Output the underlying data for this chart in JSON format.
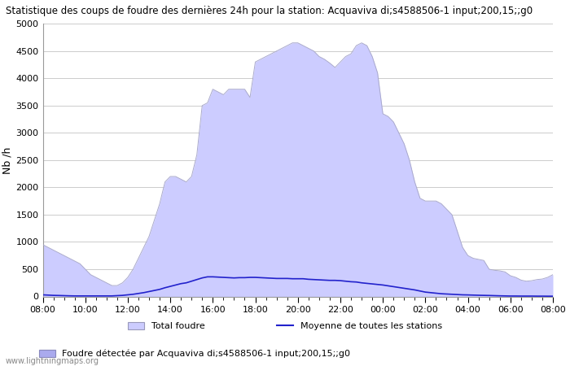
{
  "title": "Statistique des coups de foudre des dernières 24h pour la station: Acquaviva di;s4588506-1 input;200,15;;g0",
  "ylabel": "Nb /h",
  "watermark": "www.lightningmaps.org",
  "ylim": [
    0,
    5000
  ],
  "yticks": [
    0,
    500,
    1000,
    1500,
    2000,
    2500,
    3000,
    3500,
    4000,
    4500,
    5000
  ],
  "xtick_labels": [
    "08:00",
    "10:00",
    "12:00",
    "14:00",
    "16:00",
    "18:00",
    "20:00",
    "22:00",
    "00:00",
    "02:00",
    "04:00",
    "06:00",
    "08:00"
  ],
  "fill_color": "#ccccff",
  "fill_edge_color": "#aaaacc",
  "line_color": "#2222cc",
  "bg_color": "#ffffff",
  "grid_color": "#cccccc",
  "legend_total": "Total foudre",
  "legend_moyenne": "Moyenne de toutes les stations",
  "legend_station": "Foudre détectée par Acquaviva di;s4588506-1 input;200,15;;g0",
  "total_x": [
    0,
    0.25,
    0.5,
    0.75,
    1.0,
    1.25,
    1.5,
    1.75,
    2.0,
    2.25,
    2.5,
    2.75,
    3.0,
    3.25,
    3.5,
    3.75,
    4.0,
    4.25,
    4.5,
    4.75,
    5.0,
    5.25,
    5.5,
    5.75,
    6.0,
    6.25,
    6.5,
    6.75,
    7.0,
    7.25,
    7.5,
    7.75,
    8.0,
    8.25,
    8.5,
    8.75,
    9.0,
    9.25,
    9.5,
    9.75,
    10.0,
    10.25,
    10.5,
    10.75,
    11.0,
    11.25,
    11.5,
    11.75,
    12.0,
    12.25,
    12.5,
    12.75,
    13.0,
    13.25,
    13.5,
    13.75,
    14.0,
    14.25,
    14.5,
    14.75,
    15.0,
    15.25,
    15.5,
    15.75,
    16.0,
    16.25,
    16.5,
    16.75,
    17.0,
    17.25,
    17.5,
    17.75,
    18.0,
    18.25,
    18.5,
    18.75,
    19.0,
    19.25,
    19.5,
    19.75,
    20.0,
    20.25,
    20.5,
    20.75,
    21.0,
    21.25,
    21.5,
    21.75,
    22.0,
    22.25,
    22.5,
    22.75,
    23.0,
    23.25,
    23.5,
    23.75,
    24.0
  ],
  "total_y": [
    950,
    900,
    850,
    800,
    750,
    700,
    650,
    600,
    500,
    400,
    350,
    300,
    250,
    200,
    200,
    250,
    350,
    500,
    700,
    900,
    1100,
    1400,
    1700,
    2100,
    2200,
    2200,
    2150,
    2100,
    2200,
    2600,
    3500,
    3550,
    3800,
    3750,
    3700,
    3800,
    3800,
    3800,
    3800,
    3650,
    4300,
    4350,
    4400,
    4450,
    4500,
    4550,
    4600,
    4650,
    4650,
    4600,
    4550,
    4500,
    4400,
    4350,
    4280,
    4200,
    4300,
    4400,
    4450,
    4600,
    4650,
    4600,
    4400,
    4100,
    3350,
    3300,
    3200,
    3000,
    2800,
    2500,
    2100,
    1800,
    1750,
    1750,
    1750,
    1700,
    1600,
    1500,
    1200,
    900,
    750,
    700,
    680,
    660,
    500,
    480,
    470,
    450,
    380,
    350,
    300,
    280,
    290,
    310,
    320,
    350,
    400
  ],
  "moy_x": [
    0,
    0.25,
    0.5,
    0.75,
    1.0,
    1.25,
    1.5,
    1.75,
    2.0,
    2.25,
    2.5,
    2.75,
    3.0,
    3.25,
    3.5,
    3.75,
    4.0,
    4.25,
    4.5,
    4.75,
    5.0,
    5.25,
    5.5,
    5.75,
    6.0,
    6.25,
    6.5,
    6.75,
    7.0,
    7.25,
    7.5,
    7.75,
    8.0,
    8.25,
    8.5,
    8.75,
    9.0,
    9.25,
    9.5,
    9.75,
    10.0,
    10.25,
    10.5,
    10.75,
    11.0,
    11.25,
    11.5,
    11.75,
    12.0,
    12.25,
    12.5,
    12.75,
    13.0,
    13.25,
    13.5,
    13.75,
    14.0,
    14.25,
    14.5,
    14.75,
    15.0,
    15.25,
    15.5,
    15.75,
    16.0,
    16.25,
    16.5,
    16.75,
    17.0,
    17.25,
    17.5,
    17.75,
    18.0,
    18.25,
    18.5,
    18.75,
    19.0,
    19.25,
    19.5,
    19.75,
    20.0,
    20.25,
    20.5,
    20.75,
    21.0,
    21.25,
    21.5,
    21.75,
    22.0,
    22.25,
    22.5,
    22.75,
    23.0,
    23.25,
    23.5,
    23.75,
    24.0
  ],
  "moy_y": [
    30,
    25,
    20,
    18,
    15,
    12,
    10,
    10,
    10,
    10,
    10,
    10,
    10,
    10,
    15,
    20,
    30,
    40,
    55,
    70,
    90,
    110,
    130,
    160,
    185,
    210,
    235,
    250,
    280,
    310,
    340,
    360,
    360,
    355,
    350,
    345,
    340,
    345,
    345,
    350,
    350,
    345,
    340,
    335,
    330,
    330,
    330,
    325,
    325,
    325,
    315,
    310,
    305,
    300,
    295,
    295,
    290,
    280,
    270,
    265,
    250,
    240,
    230,
    220,
    210,
    195,
    180,
    165,
    150,
    135,
    120,
    100,
    80,
    70,
    60,
    50,
    45,
    40,
    35,
    30,
    28,
    25,
    22,
    20,
    18,
    15,
    12,
    10,
    8,
    8,
    7,
    7,
    7,
    6,
    6,
    5,
    5
  ]
}
